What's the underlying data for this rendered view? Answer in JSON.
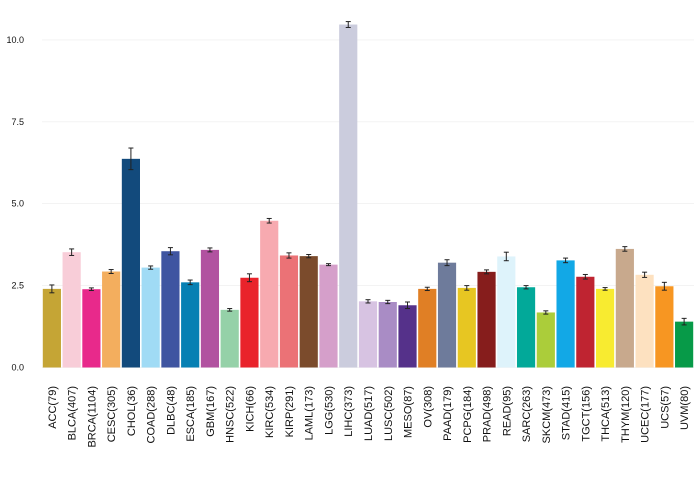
{
  "chart_data": {
    "type": "bar",
    "title": "",
    "xlabel": "",
    "ylabel": "",
    "ylim": [
      0,
      10.7
    ],
    "yticks": [
      0,
      2.5,
      5,
      7.5,
      10
    ],
    "ytick_labels": [
      "0.0",
      "2.5",
      "5.0",
      "7.5",
      "10.0"
    ],
    "grid": true,
    "categories": [
      "ACC(79)",
      "BLCA(407)",
      "BRCA(1104)",
      "CESC(305)",
      "CHOL(36)",
      "COAD(288)",
      "DLBC(48)",
      "ESCA(185)",
      "GBM(167)",
      "HNSC(522)",
      "KICH(66)",
      "KIRC(534)",
      "KIRP(291)",
      "LAML(173)",
      "LGG(530)",
      "LIHC(373)",
      "LUAD(517)",
      "LUSC(502)",
      "MESO(87)",
      "OV(308)",
      "PAAD(179)",
      "PCPG(184)",
      "PRAD(498)",
      "READ(95)",
      "SARC(263)",
      "SKCM(473)",
      "STAD(415)",
      "TGCT(156)",
      "THCA(513)",
      "THYM(120)",
      "UCEC(177)",
      "UCS(57)",
      "UVM(80)"
    ],
    "values": [
      2.4,
      3.52,
      2.39,
      2.93,
      6.37,
      3.05,
      3.55,
      2.6,
      3.59,
      1.76,
      2.74,
      4.48,
      3.42,
      3.4,
      3.14,
      10.47,
      2.02,
      2.0,
      1.9,
      2.4,
      3.2,
      2.43,
      2.92,
      3.39,
      2.45,
      1.68,
      3.27,
      2.77,
      2.4,
      3.62,
      2.83,
      2.48,
      1.4
    ],
    "errors": [
      0.12,
      0.1,
      0.04,
      0.06,
      0.33,
      0.05,
      0.11,
      0.07,
      0.06,
      0.04,
      0.12,
      0.07,
      0.08,
      0.05,
      0.03,
      0.09,
      0.05,
      0.05,
      0.1,
      0.05,
      0.09,
      0.07,
      0.06,
      0.13,
      0.05,
      0.05,
      0.07,
      0.07,
      0.04,
      0.07,
      0.08,
      0.12,
      0.1
    ],
    "colors": [
      "#c5a535",
      "#f8cdd8",
      "#e8298b",
      "#f3ae5e",
      "#124a7c",
      "#a0dbf5",
      "#3f55a1",
      "#0680b3",
      "#b152a0",
      "#95d1a8",
      "#e9232b",
      "#f7aab0",
      "#eb7276",
      "#7b4b2c",
      "#d59fca",
      "#cbccdd",
      "#d7c3e2",
      "#a98cc5",
      "#55318a",
      "#e07f25",
      "#6e7b9b",
      "#e7c622",
      "#861d1c",
      "#def3fb",
      "#02a999",
      "#abcd3a",
      "#12a8e6",
      "#bf2431",
      "#f8eb30",
      "#c8a98d",
      "#fde1c0",
      "#f79622",
      "#079a48"
    ]
  }
}
